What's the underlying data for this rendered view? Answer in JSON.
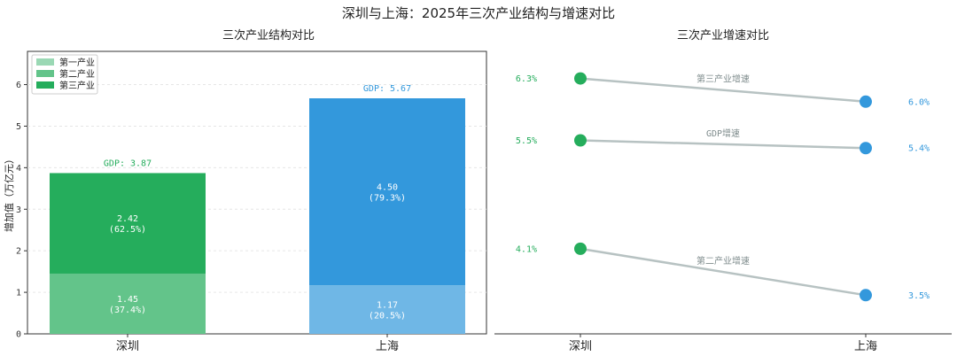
{
  "figure": {
    "title": "深圳与上海：2025年三次产业结构与增速对比"
  },
  "colors": {
    "sz_primary": "#9ad8b4",
    "sz_secondary": "#63c48a",
    "sz_tertiary": "#25ad5c",
    "sh_secondary": "#6fb7e6",
    "sh_tertiary": "#3398dc",
    "connector": "#b7c2c2",
    "sz_text": "#25ad5c",
    "sh_text": "#3398dc"
  },
  "chart_data": [
    {
      "type": "bar",
      "stacked": true,
      "title": "三次产业结构对比",
      "ylabel": "增加值（万亿元）",
      "categories": [
        "深圳",
        "上海"
      ],
      "ylim": [
        0,
        6.8
      ],
      "yticks": [
        "0",
        "1",
        "2",
        "3",
        "4",
        "5",
        "6"
      ],
      "legend": {
        "position": "top-left",
        "entries": [
          "第一产业",
          "第二产业",
          "第三产业"
        ]
      },
      "series": [
        {
          "name": "第二产业",
          "values": [
            1.45,
            1.17
          ],
          "labels": [
            "1.45",
            "1.17"
          ],
          "shares": [
            "(37.4%)",
            "(20.5%)"
          ]
        },
        {
          "name": "第三产业",
          "values": [
            2.42,
            4.5
          ],
          "labels": [
            "2.42",
            "4.50"
          ],
          "shares": [
            "(62.5%)",
            "(79.3%)"
          ]
        }
      ],
      "totals": [
        3.87,
        5.67
      ],
      "total_labels": [
        "GDP: 3.87",
        "GDP: 5.67"
      ]
    },
    {
      "type": "line",
      "title": "三次产业增速对比",
      "categories": [
        "深圳",
        "上海"
      ],
      "ylim": [
        3.0,
        6.65
      ],
      "series": [
        {
          "name": "第三产业增速",
          "values": [
            6.3,
            6.0
          ],
          "labels": [
            "6.3%",
            "6.0%"
          ]
        },
        {
          "name": "GDP增速",
          "values": [
            5.5,
            5.4
          ],
          "labels": [
            "5.5%",
            "5.4%"
          ]
        },
        {
          "name": "第二产业增速",
          "values": [
            4.1,
            3.5
          ],
          "labels": [
            "4.1%",
            "3.5%"
          ]
        }
      ]
    }
  ]
}
